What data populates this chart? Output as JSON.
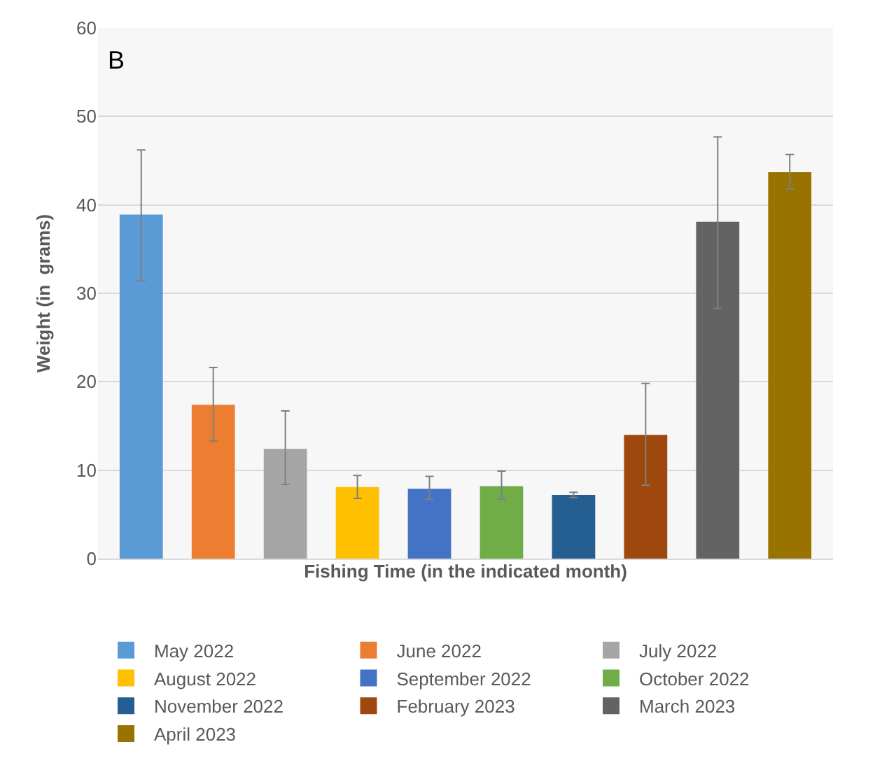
{
  "chart_data": {
    "type": "bar",
    "xlabel": "Fishing Time (in the indicated month)",
    "ylabel": "Weight (in  grams)",
    "annotations": [
      "B"
    ],
    "categories": [
      null,
      null,
      null,
      null,
      null,
      null,
      null,
      null,
      null,
      null
    ],
    "series": [
      {
        "name": "May 2022",
        "color": "#5b9bd5",
        "values": [
          38.9,
          null,
          null,
          null,
          null,
          null,
          null,
          null,
          null,
          null
        ],
        "errors": [
          [
            31.4,
            46.2
          ],
          null,
          null,
          null,
          null,
          null,
          null,
          null,
          null,
          null
        ]
      },
      {
        "name": "June 2022",
        "color": "#ed7d31",
        "values": [
          null,
          17.4,
          null,
          null,
          null,
          null,
          null,
          null,
          null,
          null
        ],
        "errors": [
          null,
          [
            13.3,
            21.6
          ],
          null,
          null,
          null,
          null,
          null,
          null,
          null,
          null
        ]
      },
      {
        "name": "July 2022",
        "color": "#a5a5a5",
        "values": [
          null,
          null,
          12.4,
          null,
          null,
          null,
          null,
          null,
          null,
          null
        ],
        "errors": [
          null,
          null,
          [
            8.4,
            16.7
          ],
          null,
          null,
          null,
          null,
          null,
          null,
          null
        ]
      },
      {
        "name": "August 2022",
        "color": "#ffc000",
        "values": [
          null,
          null,
          null,
          8.1,
          null,
          null,
          null,
          null,
          null,
          null
        ],
        "errors": [
          null,
          null,
          null,
          [
            6.8,
            9.4
          ],
          null,
          null,
          null,
          null,
          null,
          null
        ]
      },
      {
        "name": "September 2022",
        "color": "#4472c4",
        "values": [
          null,
          null,
          null,
          null,
          7.9,
          null,
          null,
          null,
          null,
          null
        ],
        "errors": [
          null,
          null,
          null,
          null,
          [
            6.7,
            9.3
          ],
          null,
          null,
          null,
          null,
          null
        ]
      },
      {
        "name": "October 2022",
        "color": "#70ad47",
        "values": [
          null,
          null,
          null,
          null,
          null,
          8.2,
          null,
          null,
          null,
          null
        ],
        "errors": [
          null,
          null,
          null,
          null,
          null,
          [
            6.7,
            9.9
          ],
          null,
          null,
          null,
          null
        ]
      },
      {
        "name": "November 2022",
        "color": "#255e91",
        "values": [
          null,
          null,
          null,
          null,
          null,
          null,
          7.2,
          null,
          null,
          null
        ],
        "errors": [
          null,
          null,
          null,
          null,
          null,
          null,
          [
            6.9,
            7.5
          ],
          null,
          null,
          null
        ]
      },
      {
        "name": "February 2023",
        "color": "#9e480e",
        "values": [
          null,
          null,
          null,
          null,
          null,
          null,
          null,
          14.0,
          null,
          null
        ],
        "errors": [
          null,
          null,
          null,
          null,
          null,
          null,
          null,
          [
            8.3,
            19.8
          ],
          null,
          null
        ]
      },
      {
        "name": "March 2023",
        "color": "#636363",
        "values": [
          null,
          null,
          null,
          null,
          null,
          null,
          null,
          null,
          38.1,
          null
        ],
        "errors": [
          null,
          null,
          null,
          null,
          null,
          null,
          null,
          null,
          [
            28.3,
            47.7
          ],
          null
        ]
      },
      {
        "name": "April 2023",
        "color": "#997300",
        "values": [
          null,
          null,
          null,
          null,
          null,
          null,
          null,
          null,
          null,
          43.7
        ],
        "errors": [
          null,
          null,
          null,
          null,
          null,
          null,
          null,
          null,
          null,
          [
            41.8,
            45.7
          ]
        ]
      }
    ],
    "ylim": [
      0,
      60
    ],
    "yticks": [
      0,
      10,
      20,
      30,
      40,
      50,
      60
    ],
    "grid": "y",
    "legend": "bottom",
    "tick_labels": "y"
  }
}
